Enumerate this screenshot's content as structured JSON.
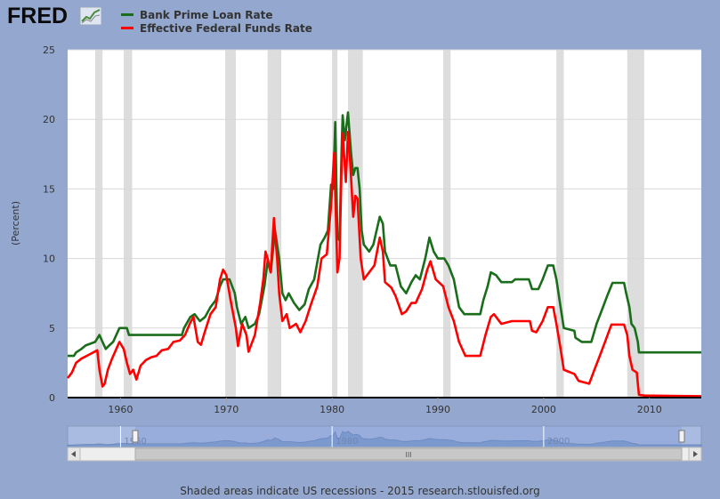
{
  "header": {
    "logo_text": "FRED",
    "logo_icon": "chart-trend-icon"
  },
  "colors": {
    "prime": "#1a6d1a",
    "fed": "#ff0000",
    "recession": "#dddddd",
    "background": "#94a8cf",
    "plot": "#ffffff"
  },
  "footer": {
    "text": "Shaded areas indicate US recessions - 2015 research.stlouisfed.org"
  },
  "navigator": {
    "tick_labels": [
      "1960",
      "1980",
      "2000"
    ],
    "scroll_grip": "III"
  },
  "chart_data": {
    "type": "line",
    "ylabel": "(Percent)",
    "xlim": [
      1955.0,
      2014.9
    ],
    "ylim": [
      0,
      25
    ],
    "yticks": [
      0,
      5,
      10,
      15,
      20,
      25
    ],
    "xticks": [
      1960,
      1970,
      1980,
      1990,
      2000,
      2010
    ],
    "legend": "top-left",
    "grid": "horizontal",
    "recessions": [
      [
        1957.6,
        1958.3
      ],
      [
        1960.3,
        1961.1
      ],
      [
        1969.9,
        1970.9
      ],
      [
        1973.9,
        1975.2
      ],
      [
        1980.0,
        1980.5
      ],
      [
        1981.5,
        1982.9
      ],
      [
        1990.5,
        1991.2
      ],
      [
        2001.2,
        2001.9
      ],
      [
        2007.9,
        2009.5
      ]
    ],
    "series": [
      {
        "name": "Bank Prime Loan Rate",
        "color": "#1a6d1a",
        "points": [
          [
            1955.0,
            3.0
          ],
          [
            1955.6,
            3.0
          ],
          [
            1955.8,
            3.25
          ],
          [
            1956.3,
            3.5
          ],
          [
            1956.7,
            3.75
          ],
          [
            1957.6,
            4.0
          ],
          [
            1958.0,
            4.5
          ],
          [
            1958.3,
            4.0
          ],
          [
            1958.6,
            3.5
          ],
          [
            1959.0,
            3.8
          ],
          [
            1959.3,
            4.0
          ],
          [
            1959.6,
            4.5
          ],
          [
            1959.9,
            5.0
          ],
          [
            1960.6,
            5.0
          ],
          [
            1960.8,
            4.5
          ],
          [
            1965.8,
            4.5
          ],
          [
            1966.0,
            5.0
          ],
          [
            1966.6,
            5.8
          ],
          [
            1967.0,
            6.0
          ],
          [
            1967.5,
            5.5
          ],
          [
            1968.0,
            5.8
          ],
          [
            1968.5,
            6.5
          ],
          [
            1969.0,
            7.0
          ],
          [
            1969.4,
            8.0
          ],
          [
            1969.7,
            8.5
          ],
          [
            1970.3,
            8.5
          ],
          [
            1970.8,
            7.5
          ],
          [
            1971.0,
            6.5
          ],
          [
            1971.4,
            5.3
          ],
          [
            1971.8,
            5.8
          ],
          [
            1972.1,
            5.0
          ],
          [
            1972.7,
            5.3
          ],
          [
            1973.1,
            6.0
          ],
          [
            1973.6,
            8.0
          ],
          [
            1973.9,
            9.8
          ],
          [
            1974.2,
            9.0
          ],
          [
            1974.6,
            12.0
          ],
          [
            1975.0,
            10.0
          ],
          [
            1975.3,
            7.5
          ],
          [
            1975.6,
            7.0
          ],
          [
            1975.9,
            7.5
          ],
          [
            1976.4,
            6.8
          ],
          [
            1976.9,
            6.3
          ],
          [
            1977.4,
            6.7
          ],
          [
            1977.8,
            7.8
          ],
          [
            1978.3,
            8.5
          ],
          [
            1978.9,
            11.0
          ],
          [
            1979.3,
            11.5
          ],
          [
            1979.6,
            12.0
          ],
          [
            1979.9,
            15.3
          ],
          [
            1980.1,
            15.0
          ],
          [
            1980.3,
            19.8
          ],
          [
            1980.5,
            11.5
          ],
          [
            1980.7,
            11.3
          ],
          [
            1980.9,
            18.0
          ],
          [
            1981.0,
            20.3
          ],
          [
            1981.2,
            18.5
          ],
          [
            1981.5,
            20.5
          ],
          [
            1981.8,
            17.5
          ],
          [
            1982.0,
            16.0
          ],
          [
            1982.2,
            16.5
          ],
          [
            1982.4,
            16.5
          ],
          [
            1982.6,
            15.0
          ],
          [
            1982.8,
            12.0
          ],
          [
            1983.0,
            11.0
          ],
          [
            1983.5,
            10.5
          ],
          [
            1983.9,
            11.0
          ],
          [
            1984.5,
            13.0
          ],
          [
            1984.8,
            12.5
          ],
          [
            1985.0,
            10.5
          ],
          [
            1985.5,
            9.5
          ],
          [
            1986.0,
            9.5
          ],
          [
            1986.5,
            8.0
          ],
          [
            1987.0,
            7.5
          ],
          [
            1987.5,
            8.3
          ],
          [
            1987.9,
            8.8
          ],
          [
            1988.3,
            8.5
          ],
          [
            1988.8,
            10.0
          ],
          [
            1989.2,
            11.5
          ],
          [
            1989.6,
            10.5
          ],
          [
            1990.0,
            10.0
          ],
          [
            1990.6,
            10.0
          ],
          [
            1991.0,
            9.5
          ],
          [
            1991.5,
            8.5
          ],
          [
            1992.0,
            6.5
          ],
          [
            1992.5,
            6.0
          ],
          [
            1994.0,
            6.0
          ],
          [
            1994.3,
            7.0
          ],
          [
            1994.7,
            8.0
          ],
          [
            1995.0,
            9.0
          ],
          [
            1995.5,
            8.8
          ],
          [
            1996.0,
            8.3
          ],
          [
            1997.0,
            8.3
          ],
          [
            1997.3,
            8.5
          ],
          [
            1998.6,
            8.5
          ],
          [
            1998.9,
            7.8
          ],
          [
            1999.5,
            7.8
          ],
          [
            1999.9,
            8.5
          ],
          [
            2000.4,
            9.5
          ],
          [
            2000.9,
            9.5
          ],
          [
            2001.2,
            8.5
          ],
          [
            2001.6,
            6.5
          ],
          [
            2001.9,
            5.0
          ],
          [
            2002.9,
            4.8
          ],
          [
            2003.0,
            4.3
          ],
          [
            2003.6,
            4.0
          ],
          [
            2004.5,
            4.0
          ],
          [
            2005.0,
            5.3
          ],
          [
            2005.5,
            6.3
          ],
          [
            2006.0,
            7.3
          ],
          [
            2006.5,
            8.25
          ],
          [
            2007.6,
            8.25
          ],
          [
            2007.8,
            7.5
          ],
          [
            2008.1,
            6.5
          ],
          [
            2008.3,
            5.3
          ],
          [
            2008.6,
            5.0
          ],
          [
            2008.9,
            4.0
          ],
          [
            2009.0,
            3.25
          ],
          [
            2014.9,
            3.25
          ]
        ]
      },
      {
        "name": "Effective Federal Funds Rate",
        "color": "#ff0000",
        "points": [
          [
            1955.0,
            1.4
          ],
          [
            1955.4,
            1.8
          ],
          [
            1955.8,
            2.5
          ],
          [
            1956.3,
            2.8
          ],
          [
            1956.8,
            3.0
          ],
          [
            1957.3,
            3.2
          ],
          [
            1957.8,
            3.4
          ],
          [
            1958.0,
            2.0
          ],
          [
            1958.3,
            0.8
          ],
          [
            1958.5,
            1.0
          ],
          [
            1958.8,
            2.0
          ],
          [
            1959.2,
            2.8
          ],
          [
            1959.6,
            3.5
          ],
          [
            1959.9,
            4.0
          ],
          [
            1960.3,
            3.5
          ],
          [
            1960.6,
            2.5
          ],
          [
            1960.9,
            1.7
          ],
          [
            1961.2,
            2.0
          ],
          [
            1961.5,
            1.3
          ],
          [
            1961.9,
            2.3
          ],
          [
            1962.4,
            2.7
          ],
          [
            1962.9,
            2.9
          ],
          [
            1963.4,
            3.0
          ],
          [
            1963.9,
            3.4
          ],
          [
            1964.5,
            3.5
          ],
          [
            1965.0,
            4.0
          ],
          [
            1965.6,
            4.1
          ],
          [
            1966.1,
            4.5
          ],
          [
            1966.6,
            5.4
          ],
          [
            1966.9,
            5.8
          ],
          [
            1967.3,
            4.0
          ],
          [
            1967.6,
            3.8
          ],
          [
            1968.0,
            4.8
          ],
          [
            1968.5,
            6.0
          ],
          [
            1969.0,
            6.5
          ],
          [
            1969.4,
            8.5
          ],
          [
            1969.7,
            9.2
          ],
          [
            1970.0,
            8.8
          ],
          [
            1970.4,
            7.0
          ],
          [
            1970.9,
            5.0
          ],
          [
            1971.1,
            3.7
          ],
          [
            1971.5,
            5.3
          ],
          [
            1971.9,
            4.5
          ],
          [
            1972.1,
            3.3
          ],
          [
            1972.7,
            4.5
          ],
          [
            1973.2,
            6.8
          ],
          [
            1973.5,
            8.5
          ],
          [
            1973.7,
            10.5
          ],
          [
            1973.9,
            10.0
          ],
          [
            1974.2,
            9.0
          ],
          [
            1974.5,
            12.9
          ],
          [
            1974.8,
            10.0
          ],
          [
            1975.0,
            7.5
          ],
          [
            1975.3,
            5.5
          ],
          [
            1975.7,
            6.0
          ],
          [
            1976.0,
            5.0
          ],
          [
            1976.6,
            5.3
          ],
          [
            1977.0,
            4.7
          ],
          [
            1977.5,
            5.5
          ],
          [
            1978.0,
            6.7
          ],
          [
            1978.6,
            8.0
          ],
          [
            1979.0,
            10.0
          ],
          [
            1979.5,
            10.3
          ],
          [
            1979.9,
            13.8
          ],
          [
            1980.2,
            17.6
          ],
          [
            1980.5,
            9.0
          ],
          [
            1980.7,
            10.0
          ],
          [
            1980.9,
            17.0
          ],
          [
            1981.0,
            19.0
          ],
          [
            1981.3,
            15.5
          ],
          [
            1981.5,
            19.1
          ],
          [
            1981.7,
            17.0
          ],
          [
            1982.0,
            13.0
          ],
          [
            1982.2,
            14.5
          ],
          [
            1982.4,
            14.3
          ],
          [
            1982.7,
            10.0
          ],
          [
            1983.0,
            8.5
          ],
          [
            1983.5,
            9.0
          ],
          [
            1984.0,
            9.5
          ],
          [
            1984.5,
            11.5
          ],
          [
            1984.8,
            10.5
          ],
          [
            1985.0,
            8.3
          ],
          [
            1985.6,
            7.9
          ],
          [
            1986.0,
            7.3
          ],
          [
            1986.6,
            6.0
          ],
          [
            1987.0,
            6.2
          ],
          [
            1987.5,
            6.8
          ],
          [
            1987.9,
            6.8
          ],
          [
            1988.5,
            7.8
          ],
          [
            1989.0,
            9.2
          ],
          [
            1989.3,
            9.8
          ],
          [
            1989.8,
            8.5
          ],
          [
            1990.5,
            8.0
          ],
          [
            1991.0,
            6.5
          ],
          [
            1991.5,
            5.5
          ],
          [
            1992.0,
            4.0
          ],
          [
            1992.6,
            3.0
          ],
          [
            1993.0,
            3.0
          ],
          [
            1994.0,
            3.0
          ],
          [
            1994.5,
            4.5
          ],
          [
            1995.0,
            5.8
          ],
          [
            1995.3,
            6.0
          ],
          [
            1996.0,
            5.3
          ],
          [
            1997.0,
            5.5
          ],
          [
            1998.0,
            5.5
          ],
          [
            1998.7,
            5.5
          ],
          [
            1998.9,
            4.8
          ],
          [
            1999.3,
            4.7
          ],
          [
            1999.9,
            5.5
          ],
          [
            2000.4,
            6.5
          ],
          [
            2000.9,
            6.5
          ],
          [
            2001.2,
            5.3
          ],
          [
            2001.6,
            3.5
          ],
          [
            2001.9,
            2.0
          ],
          [
            2002.9,
            1.7
          ],
          [
            2003.3,
            1.2
          ],
          [
            2004.3,
            1.0
          ],
          [
            2004.8,
            2.0
          ],
          [
            2005.3,
            3.0
          ],
          [
            2005.8,
            4.0
          ],
          [
            2006.4,
            5.25
          ],
          [
            2007.6,
            5.25
          ],
          [
            2007.9,
            4.5
          ],
          [
            2008.1,
            3.0
          ],
          [
            2008.4,
            2.0
          ],
          [
            2008.8,
            1.8
          ],
          [
            2009.0,
            0.2
          ],
          [
            2009.5,
            0.15
          ],
          [
            2014.9,
            0.1
          ]
        ]
      }
    ]
  }
}
